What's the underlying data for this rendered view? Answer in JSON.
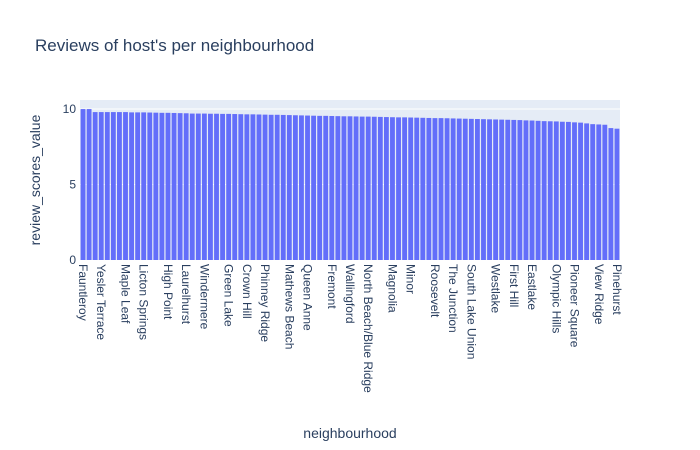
{
  "chart_data": {
    "type": "bar",
    "title": "Reviews of host's per neighbourhood",
    "xlabel": "neighbourhood",
    "ylabel": "review_scores_value",
    "ylim": [
      0,
      10.6
    ],
    "yticks": [
      0,
      5,
      10
    ],
    "grid": true,
    "bar_color": "#636efa",
    "plot_bg": "#e5ecf6",
    "tick_labels": [
      "Fauntleroy",
      "Yesler Terrace",
      "Maple Leaf",
      "Licton Springs",
      "High Point",
      "Laurelhurst",
      "Windermere",
      "Green Lake",
      "Crown Hill",
      "Phinney Ridge",
      "Mathews Beach",
      "Queen Anne",
      "Fremont",
      "Wallingford",
      "North Beach/Blue Ridge",
      "Magnolia",
      "Minor",
      "Roosevelt",
      "The Junction",
      "South Lake Union",
      "Westlake",
      "First Hill",
      "Eastlake",
      "Olympic Hills",
      "Pioneer Square",
      "View Ridge",
      "Pinehurst"
    ],
    "values": [
      10.0,
      10.0,
      9.8,
      9.8,
      9.8,
      9.8,
      9.8,
      9.8,
      9.78,
      9.78,
      9.78,
      9.77,
      9.76,
      9.75,
      9.75,
      9.74,
      9.73,
      9.72,
      9.7,
      9.7,
      9.7,
      9.69,
      9.69,
      9.68,
      9.68,
      9.67,
      9.66,
      9.65,
      9.65,
      9.64,
      9.63,
      9.62,
      9.62,
      9.61,
      9.6,
      9.59,
      9.58,
      9.57,
      9.56,
      9.55,
      9.55,
      9.54,
      9.53,
      9.52,
      9.52,
      9.51,
      9.5,
      9.5,
      9.49,
      9.48,
      9.47,
      9.46,
      9.45,
      9.45,
      9.44,
      9.43,
      9.42,
      9.41,
      9.4,
      9.4,
      9.39,
      9.38,
      9.37,
      9.36,
      9.35,
      9.34,
      9.33,
      9.32,
      9.31,
      9.3,
      9.29,
      9.28,
      9.27,
      9.25,
      9.24,
      9.22,
      9.2,
      9.19,
      9.18,
      9.16,
      9.15,
      9.12,
      9.1,
      9.05,
      9.0,
      8.98,
      8.96,
      8.74,
      8.7
    ]
  }
}
